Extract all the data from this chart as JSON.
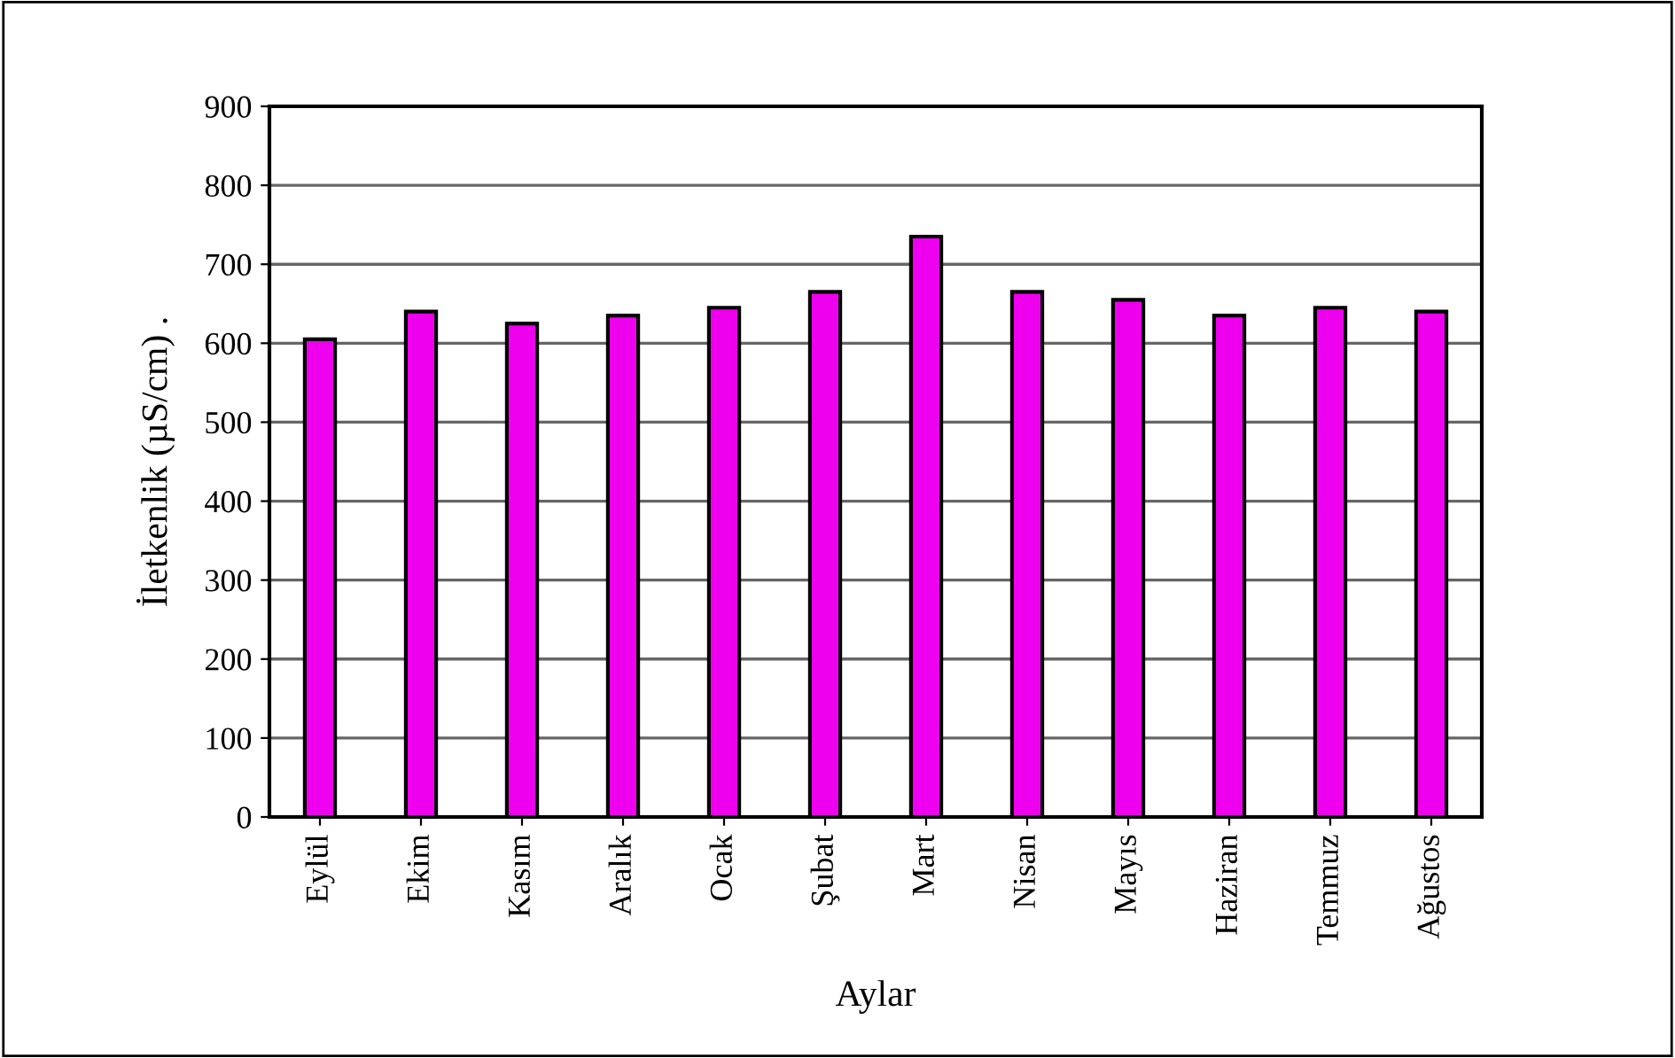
{
  "chart_data": {
    "type": "bar",
    "xlabel": "Aylar",
    "ylabel": "İletkenlik (µS/cm) .",
    "categories": [
      "Eylül",
      "Ekim",
      "Kasım",
      "Aralık",
      "Ocak",
      "Şubat",
      "Mart",
      "Nisan",
      "Mayıs",
      "Haziran",
      "Temmuz",
      "Ağustos"
    ],
    "values": [
      605,
      640,
      625,
      635,
      645,
      665,
      735,
      665,
      655,
      635,
      645,
      640
    ],
    "color": "#ee00ee",
    "ylim": [
      0,
      900
    ],
    "yticks": [
      0,
      100,
      200,
      300,
      400,
      500,
      600,
      700,
      800,
      900
    ],
    "grid": "y"
  }
}
